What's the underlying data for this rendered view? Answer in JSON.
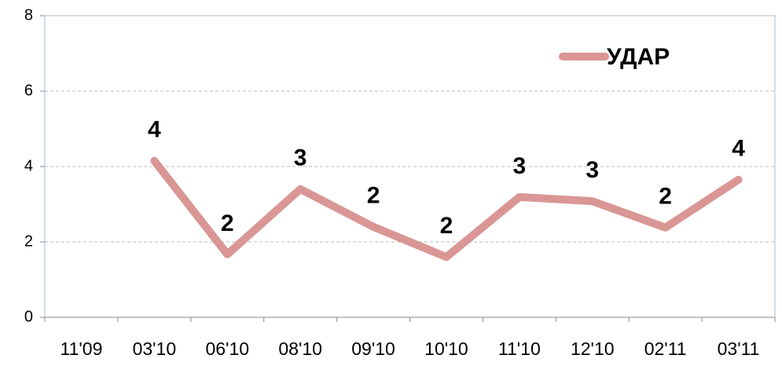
{
  "chart_data": {
    "type": "line",
    "categories": [
      "11'09",
      "03'10",
      "06'10",
      "08'10",
      "09'10",
      "10'10",
      "11'10",
      "12'10",
      "02'11",
      "03'11"
    ],
    "series": [
      {
        "name": "УДАР",
        "color": "#d99694",
        "values": [
          null,
          4.15,
          1.67,
          3.4,
          2.4,
          1.6,
          3.19,
          3.08,
          2.38,
          3.65
        ],
        "value_labels": [
          null,
          "4",
          "2",
          "3",
          "2",
          "2",
          "3",
          "3",
          "2",
          "4"
        ]
      }
    ],
    "ylim": [
      0,
      8
    ],
    "yticks": [
      0,
      2,
      4,
      6,
      8
    ],
    "grid": true,
    "legend": "top-right"
  }
}
